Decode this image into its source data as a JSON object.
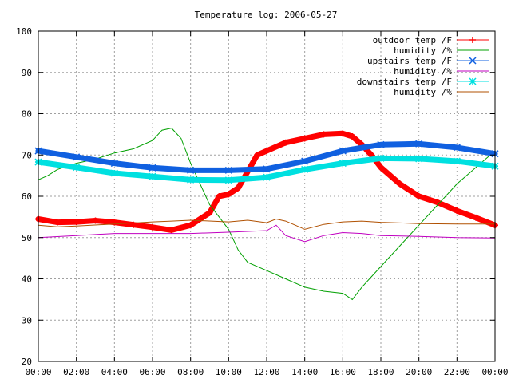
{
  "chart_data": {
    "type": "line",
    "title": "Temperature log: 2006-05-27",
    "xlabel": "",
    "ylabel": "",
    "ylim": [
      20,
      100
    ],
    "yticks": [
      "20",
      "30",
      "40",
      "50",
      "60",
      "70",
      "80",
      "90",
      "100"
    ],
    "xlim": [
      0,
      24
    ],
    "xticks": [
      "00:00",
      "02:00",
      "04:00",
      "06:00",
      "08:00",
      "10:00",
      "12:00",
      "14:00",
      "16:00",
      "18:00",
      "20:00",
      "22:00",
      "00:00"
    ],
    "grid": true,
    "legend_position": "top-right",
    "series": [
      {
        "name": "outdoor temp /F",
        "color": "#ff0000",
        "marker": "plus",
        "x": [
          "00:00",
          "01:00",
          "02:00",
          "03:00",
          "04:00",
          "05:00",
          "06:00",
          "07:00",
          "08:00",
          "09:00",
          "09:30",
          "10:00",
          "10:30",
          "11:00",
          "11:30",
          "12:00",
          "13:00",
          "14:00",
          "15:00",
          "16:00",
          "16:30",
          "17:00",
          "17:30",
          "18:00",
          "19:00",
          "20:00",
          "21:00",
          "22:00",
          "23:00",
          "24:00"
        ],
        "y": [
          54.5,
          53.7,
          53.8,
          54.1,
          53.7,
          53.1,
          52.5,
          51.8,
          53.0,
          56.0,
          60.0,
          60.5,
          62.0,
          66.0,
          70.0,
          71.0,
          73.0,
          74.0,
          75.0,
          75.2,
          74.5,
          72.5,
          70.0,
          67.0,
          63.0,
          60.0,
          58.5,
          56.5,
          54.8,
          53.0
        ]
      },
      {
        "name": "humidity /%",
        "color": "#00a000",
        "x": [
          "00:00",
          "00:30",
          "01:00",
          "02:00",
          "03:00",
          "04:00",
          "05:00",
          "06:00",
          "06:30",
          "07:00",
          "07:30",
          "08:00",
          "09:00",
          "10:00",
          "10:30",
          "11:00",
          "12:00",
          "13:00",
          "14:00",
          "15:00",
          "16:00",
          "16:30",
          "17:00",
          "18:00",
          "19:00",
          "20:00",
          "21:00",
          "22:00",
          "23:00",
          "24:00"
        ],
        "y": [
          64.0,
          65.0,
          66.5,
          68.0,
          69.0,
          70.5,
          71.5,
          73.5,
          76.0,
          76.5,
          74.0,
          68.0,
          58.0,
          52.0,
          47.0,
          44.0,
          42.0,
          40.0,
          38.0,
          37.0,
          36.5,
          35.0,
          38.0,
          43.0,
          48.0,
          53.0,
          58.0,
          63.0,
          67.0,
          71.0
        ]
      },
      {
        "name": "upstairs temp /F",
        "color": "#1060e0",
        "marker": "cross",
        "x": [
          "00:00",
          "02:00",
          "04:00",
          "06:00",
          "08:00",
          "10:00",
          "12:00",
          "14:00",
          "16:00",
          "18:00",
          "20:00",
          "22:00",
          "24:00"
        ],
        "y": [
          71.0,
          69.5,
          68.0,
          66.9,
          66.3,
          66.3,
          66.6,
          68.5,
          71.0,
          72.5,
          72.7,
          71.8,
          70.3
        ]
      },
      {
        "name": "humidity /%",
        "color": "#c000c0",
        "x": [
          "00:00",
          "02:00",
          "04:00",
          "06:00",
          "08:00",
          "10:00",
          "12:00",
          "12:30",
          "13:00",
          "14:00",
          "15:00",
          "16:00",
          "17:00",
          "18:00",
          "20:00",
          "22:00",
          "24:00"
        ],
        "y": [
          50.0,
          50.5,
          51.0,
          51.0,
          51.0,
          51.3,
          51.7,
          53.0,
          50.5,
          49.0,
          50.5,
          51.2,
          51.0,
          50.5,
          50.3,
          50.0,
          49.9
        ]
      },
      {
        "name": "downstairs temp /F",
        "color": "#00e0e0",
        "marker": "star",
        "x": [
          "00:00",
          "02:00",
          "04:00",
          "06:00",
          "08:00",
          "10:00",
          "12:00",
          "14:00",
          "16:00",
          "18:00",
          "20:00",
          "22:00",
          "24:00"
        ],
        "y": [
          68.3,
          67.0,
          65.6,
          64.8,
          64.0,
          63.9,
          64.6,
          66.5,
          68.0,
          69.2,
          69.1,
          68.5,
          67.3
        ]
      },
      {
        "name": "humidity /%",
        "color": "#b05000",
        "x": [
          "00:00",
          "01:00",
          "02:00",
          "04:00",
          "06:00",
          "07:00",
          "08:00",
          "10:00",
          "11:00",
          "12:00",
          "12:30",
          "13:00",
          "13:30",
          "14:00",
          "15:00",
          "16:00",
          "17:00",
          "18:00",
          "20:00",
          "22:00",
          "24:00"
        ],
        "y": [
          53.0,
          52.6,
          52.8,
          53.3,
          53.8,
          54.0,
          54.2,
          53.8,
          54.2,
          53.6,
          54.5,
          54.0,
          53.0,
          52.0,
          53.2,
          53.8,
          54.0,
          53.7,
          53.4,
          53.3,
          53.3
        ]
      }
    ]
  }
}
